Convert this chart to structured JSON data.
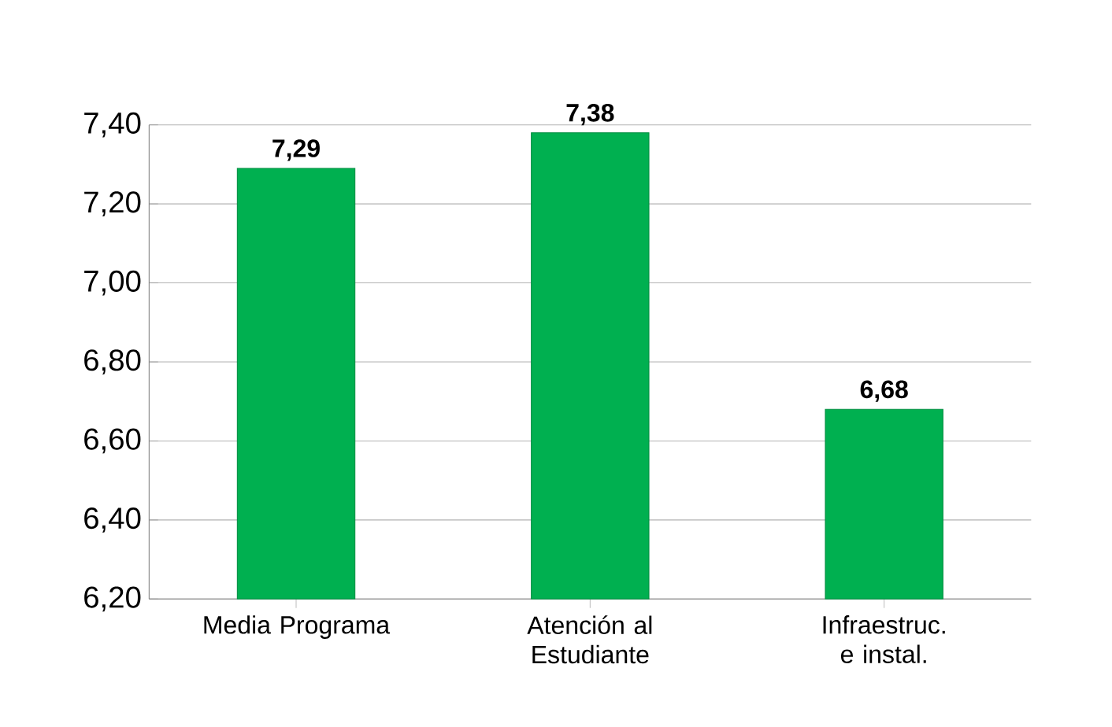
{
  "chart_data": {
    "type": "bar",
    "categories": [
      "Media Programa",
      "Atención al Estudiante",
      "Infraestruc. e instal."
    ],
    "values": [
      7.29,
      7.38,
      6.68
    ],
    "color": "#00b050",
    "value_labels": [
      "7,29",
      "7,38",
      "6,68"
    ],
    "ylim": [
      6.2,
      7.4
    ],
    "yticks": [
      {
        "value": 6.2,
        "label": "6,20"
      },
      {
        "value": 6.4,
        "label": "6,40"
      },
      {
        "value": 6.6,
        "label": "6,60"
      },
      {
        "value": 6.8,
        "label": "6,80"
      },
      {
        "value": 7.0,
        "label": "7,00"
      },
      {
        "value": 7.2,
        "label": "7,20"
      },
      {
        "value": 7.4,
        "label": "7,40"
      }
    ],
    "grid": "y"
  }
}
